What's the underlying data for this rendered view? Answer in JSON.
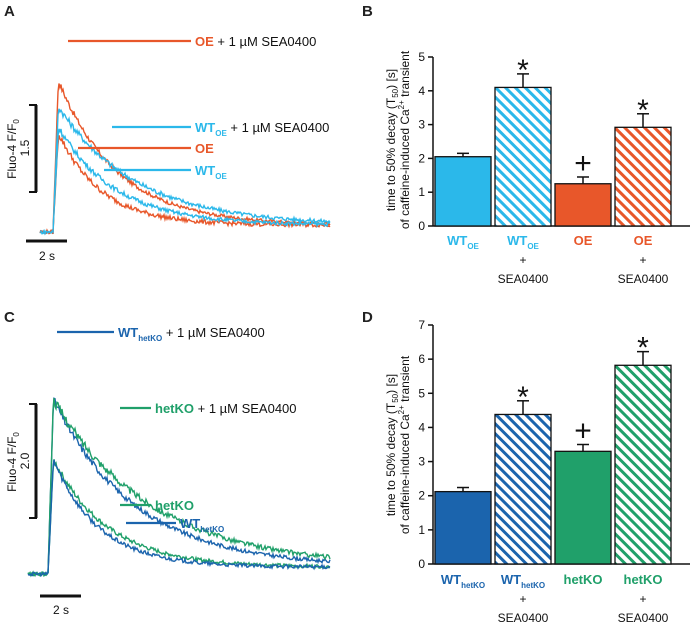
{
  "chart_data": [
    {
      "panel": "A",
      "type": "line",
      "ylabel": "Fluo-4 F/F",
      "ylabel_sub": "0",
      "scale_y": "1.5",
      "scale_x": "2 s",
      "series": [
        {
          "name": "OE + 1 µM SEA0400",
          "label_main": "OE",
          "label_sub": "",
          "label_suffix": "+ 1 µM SEA0400",
          "color": "#e8572a",
          "peak": 2.5,
          "tau": 2.6,
          "noise": 0.05
        },
        {
          "name": "WT_OE + 1 µM SEA0400",
          "label_main": "WT",
          "label_sub": "OE",
          "label_suffix": "+ 1 µM SEA0400",
          "color": "#2bb8ea",
          "peak": 2.05,
          "tau": 3.4,
          "noise": 0.06
        },
        {
          "name": "OE",
          "label_main": "OE",
          "label_sub": "",
          "label_suffix": "",
          "color": "#e8572a",
          "peak": 1.6,
          "tau": 1.9,
          "noise": 0.07
        },
        {
          "name": "WT_OE",
          "label_main": "WT",
          "label_sub": "OE",
          "label_suffix": "",
          "color": "#2bb8ea",
          "peak": 1.7,
          "tau": 2.5,
          "noise": 0.06
        }
      ]
    },
    {
      "panel": "B",
      "type": "bar",
      "ylabel_line1": "time to 50% decay (T",
      "ylabel_line1_sub": "50",
      "ylabel_line1_end": ") [s]",
      "ylabel_line2": "of caffeine-induced Ca",
      "ylabel_line2_sup": "2+",
      "ylabel_line2_end": " transient",
      "ylim": [
        0,
        5
      ],
      "yticks": [
        0,
        1,
        2,
        3,
        4,
        5
      ],
      "bars": [
        {
          "main": "WT",
          "sub": "OE",
          "plus": "",
          "drug": "",
          "value": 2.05,
          "err": 0.1,
          "color": "#2bb8ea",
          "hatched": false,
          "mark": ""
        },
        {
          "main": "WT",
          "sub": "OE",
          "plus": "+",
          "drug": "SEA0400",
          "value": 4.1,
          "err": 0.4,
          "color": "#2bb8ea",
          "hatched": true,
          "mark": "*"
        },
        {
          "main": "OE",
          "sub": "",
          "plus": "",
          "drug": "",
          "value": 1.25,
          "err": 0.2,
          "color": "#e8572a",
          "hatched": false,
          "mark": "+"
        },
        {
          "main": "OE",
          "sub": "",
          "plus": "+",
          "drug": "SEA0400",
          "value": 2.92,
          "err": 0.4,
          "color": "#e8572a",
          "hatched": true,
          "mark": "*"
        }
      ]
    },
    {
      "panel": "C",
      "type": "line",
      "ylabel": "Fluo-4 F/F",
      "ylabel_sub": "0",
      "scale_y": "2.0",
      "scale_x": "2 s",
      "series": [
        {
          "name": "WT_hetKO + 1 µM SEA0400",
          "label_main": "WT",
          "label_sub": "hetKO",
          "label_suffix": "+ 1 µM SEA0400",
          "color": "#1b64ad",
          "peak": 2.95,
          "tau": 3.6,
          "noise": 0.06
        },
        {
          "name": "hetKO + 1 µM SEA0400",
          "label_main": "hetKO",
          "label_sub": "",
          "label_suffix": "+ 1 µM SEA0400",
          "color": "#20a06a",
          "peak": 2.95,
          "tau": 4.3,
          "noise": 0.07
        },
        {
          "name": "hetKO",
          "label_main": "hetKO",
          "label_sub": "",
          "label_suffix": "",
          "color": "#20a06a",
          "peak": 1.9,
          "tau": 2.4,
          "noise": 0.06
        },
        {
          "name": "WT_hetKO",
          "label_main": "WT",
          "label_sub": "hetKO",
          "label_suffix": "",
          "color": "#1b64ad",
          "peak": 1.9,
          "tau": 2.0,
          "noise": 0.06
        }
      ]
    },
    {
      "panel": "D",
      "type": "bar",
      "ylabel_line1": "time to 50% decay (T",
      "ylabel_line1_sub": "50",
      "ylabel_line1_end": ") [s]",
      "ylabel_line2": "of caffeine-induced Ca",
      "ylabel_line2_sup": "2+",
      "ylabel_line2_end": " transient",
      "ylim": [
        0,
        7
      ],
      "yticks": [
        0,
        1,
        2,
        3,
        4,
        5,
        6,
        7
      ],
      "bars": [
        {
          "main": "WT",
          "sub": "hetKO",
          "plus": "",
          "drug": "",
          "value": 2.12,
          "err": 0.12,
          "color": "#1b64ad",
          "hatched": false,
          "mark": ""
        },
        {
          "main": "WT",
          "sub": "hetKO",
          "plus": "+",
          "drug": "SEA0400",
          "value": 4.38,
          "err": 0.4,
          "color": "#1b64ad",
          "hatched": true,
          "mark": "*"
        },
        {
          "main": "hetKO",
          "sub": "",
          "plus": "",
          "drug": "",
          "value": 3.3,
          "err": 0.2,
          "color": "#20a06a",
          "hatched": false,
          "mark": "+"
        },
        {
          "main": "hetKO",
          "sub": "",
          "plus": "+",
          "drug": "SEA0400",
          "value": 5.82,
          "err": 0.4,
          "color": "#20a06a",
          "hatched": true,
          "mark": "*"
        }
      ]
    }
  ]
}
